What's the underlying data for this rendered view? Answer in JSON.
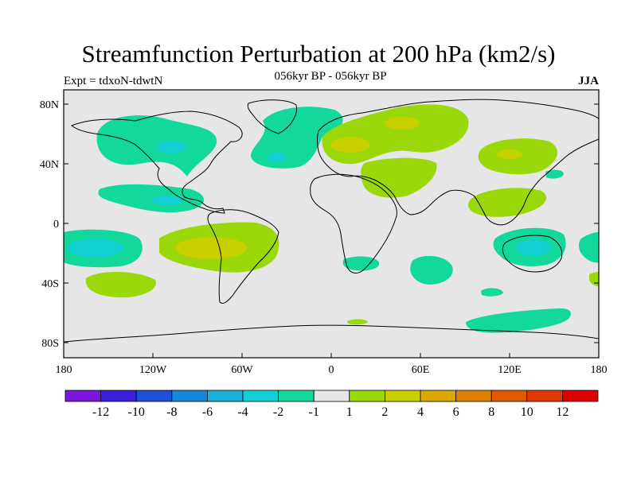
{
  "header": {
    "title": "Streamfunction Perturbation at 200 hPa (km2/s)",
    "subtitle": "056kyr BP - 056kyr BP",
    "left_label": "Expt = tdxoN-tdwtN",
    "right_label": "JJA"
  },
  "axes": {
    "y_ticks": [
      "80N",
      "40N",
      "0",
      "40S",
      "80S"
    ],
    "x_ticks": [
      "180",
      "120W",
      "60W",
      "0",
      "60E",
      "120E",
      "180"
    ]
  },
  "colorbar": {
    "labels": [
      "-12",
      "-10",
      "-8",
      "-6",
      "-4",
      "-2",
      "-1",
      "1",
      "2",
      "4",
      "6",
      "8",
      "10",
      "12"
    ],
    "colors": [
      "#7b16dc",
      "#3a1fd8",
      "#1f4fd8",
      "#1985d8",
      "#18afd8",
      "#12cfd4",
      "#12d89c",
      "#e6e6e6",
      "#9bd80a",
      "#c8d000",
      "#dca800",
      "#df7f00",
      "#e05a00",
      "#e03a00",
      "#e00000"
    ]
  },
  "colors": {
    "background_ocean": "#e6e6e6",
    "neg1": "#12d89c",
    "neg2": "#12cfd4",
    "pos1": "#9bd80a",
    "pos2": "#c8d000"
  }
}
